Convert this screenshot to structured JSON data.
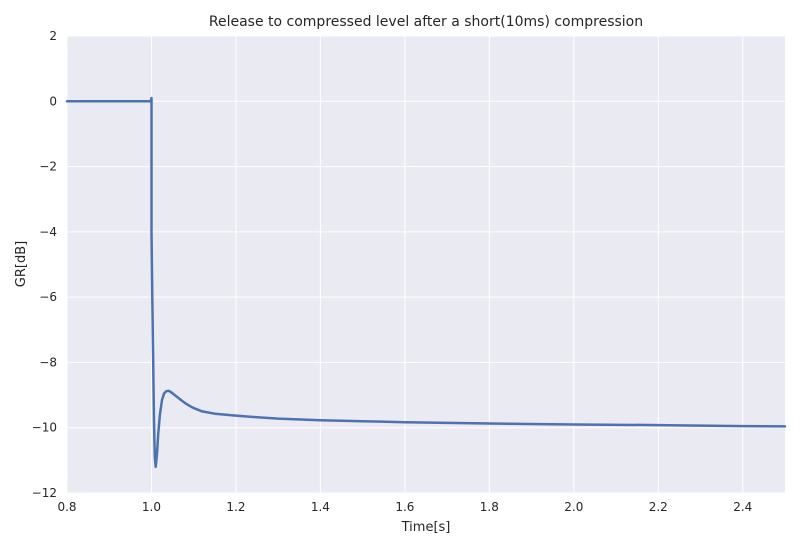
{
  "chart_data": {
    "type": "line",
    "title": "Release to compressed level after a short(10ms) compression",
    "xlabel": "Time[s]",
    "ylabel": "GR[dB]",
    "xlim": [
      0.8,
      2.5
    ],
    "ylim": [
      -12,
      2
    ],
    "xticks": [
      "0.8",
      "1.0",
      "1.2",
      "1.4",
      "1.6",
      "1.8",
      "2.0",
      "2.2",
      "2.4"
    ],
    "yticks": [
      "2",
      "0",
      "−2",
      "−4",
      "−6",
      "−8",
      "−10",
      "−12"
    ],
    "xtick_values": [
      0.8,
      1.0,
      1.2,
      1.4,
      1.6,
      1.8,
      2.0,
      2.2,
      2.4
    ],
    "ytick_values": [
      2,
      0,
      -2,
      -4,
      -6,
      -8,
      -10,
      -12
    ],
    "grid": true,
    "colors": {
      "background": "#eaeaf2",
      "grid": "#ffffff",
      "line": "#4c72b0"
    },
    "series": [
      {
        "x": [
          0.8,
          0.9,
          0.995,
          0.998,
          1.0,
          1.0,
          1.002,
          1.004,
          1.006,
          1.008,
          1.01,
          1.013,
          1.016,
          1.02,
          1.025,
          1.03,
          1.035,
          1.04,
          1.045,
          1.05,
          1.06,
          1.07,
          1.08,
          1.09,
          1.1,
          1.12,
          1.15,
          1.2,
          1.25,
          1.3,
          1.4,
          1.5,
          1.6,
          1.8,
          2.0,
          2.2,
          2.4,
          2.5
        ],
        "y": [
          0.0,
          0.0,
          0.0,
          0.0,
          0.1,
          -4.0,
          -6.0,
          -8.0,
          -9.8,
          -10.9,
          -11.2,
          -10.8,
          -10.2,
          -9.6,
          -9.15,
          -8.95,
          -8.88,
          -8.87,
          -8.9,
          -8.95,
          -9.05,
          -9.15,
          -9.25,
          -9.33,
          -9.4,
          -9.5,
          -9.57,
          -9.63,
          -9.68,
          -9.72,
          -9.77,
          -9.8,
          -9.83,
          -9.87,
          -9.9,
          -9.92,
          -9.95,
          -9.96
        ]
      }
    ]
  }
}
